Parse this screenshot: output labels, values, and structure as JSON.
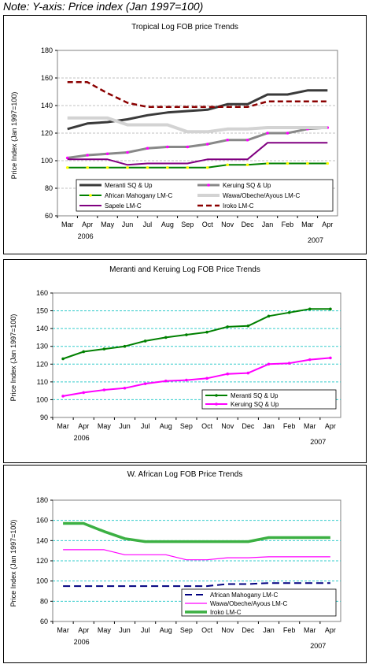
{
  "note": "Note: Y-axis: Price index (Jan 1997=100)",
  "chart_data": [
    {
      "type": "line",
      "title": "Tropical Log FOB price Trends",
      "ylabel": "Price Index (Jan 1997=100)",
      "categories": [
        "Mar",
        "Apr",
        "May",
        "Jun",
        "Jul",
        "Aug",
        "Sep",
        "Oct",
        "Nov",
        "Dec",
        "Jan",
        "Feb",
        "Mar",
        "Apr"
      ],
      "year_labels": [
        "2006",
        "2007"
      ],
      "ylim": [
        60,
        180
      ],
      "yticks": [
        60,
        80,
        100,
        120,
        140,
        160,
        180
      ],
      "grid": true,
      "plot_bg": "#ffffff",
      "series": [
        {
          "name": "Meranti SQ & Up",
          "color": "#3a3a3a",
          "dash": "",
          "width": 3,
          "marker": false,
          "values": [
            123,
            127,
            128,
            130,
            133,
            135,
            136,
            137,
            141,
            141,
            148,
            148,
            151,
            151
          ]
        },
        {
          "name": "Keruing SQ & Up",
          "color": "#888888",
          "dash": "",
          "width": 3,
          "marker": true,
          "marker_color": "#ff00ff",
          "values": [
            102,
            104,
            105,
            106,
            109,
            110,
            110,
            112,
            115,
            115,
            120,
            120,
            123,
            124
          ]
        },
        {
          "name": "African Mahogany LM-C",
          "color": "#008000",
          "dash": "",
          "width": 2,
          "marker": true,
          "marker_color": "#ffff00",
          "values": [
            95,
            95,
            95,
            95,
            95,
            95,
            95,
            95,
            97,
            97,
            98,
            98,
            98,
            98
          ]
        },
        {
          "name": "Wawa/Obeche/Ayous LM-C",
          "color": "#d3d3d3",
          "dash": "",
          "width": 4,
          "marker": false,
          "values": [
            131,
            131,
            131,
            126,
            126,
            126,
            121,
            121,
            123,
            123,
            124,
            124,
            124,
            124
          ]
        },
        {
          "name": "Sapele LM-C",
          "color": "#800080",
          "dash": "",
          "width": 2,
          "marker": false,
          "values": [
            101,
            101,
            101,
            97,
            98,
            98,
            98,
            101,
            101,
            101,
            113,
            113,
            113,
            113
          ]
        },
        {
          "name": "Iroko LM-C",
          "color": "#8b0000",
          "dash": "7,4",
          "width": 2.5,
          "marker": false,
          "values": [
            157,
            157,
            149,
            142,
            139,
            139,
            139,
            139,
            139,
            139,
            143,
            143,
            143,
            143
          ]
        }
      ]
    },
    {
      "type": "line",
      "title": "Meranti and Keruing Log FOB Price Trends",
      "ylabel": "Price Index (Jan 1997=100)",
      "categories": [
        "Mar",
        "Apr",
        "May",
        "Jun",
        "Jul",
        "Aug",
        "Sep",
        "Oct",
        "Nov",
        "Dec",
        "Jan",
        "Feb",
        "Mar",
        "Apr"
      ],
      "year_labels": [
        "2006",
        "2007"
      ],
      "ylim": [
        90,
        160
      ],
      "yticks": [
        90,
        100,
        110,
        120,
        130,
        140,
        150,
        160
      ],
      "grid": true,
      "series": [
        {
          "name": "Meranti SQ & Up",
          "color": "#008000",
          "dash": "",
          "width": 2,
          "marker": true,
          "marker_color": "#008000",
          "values": [
            123,
            127,
            128.5,
            130,
            133,
            135,
            136.5,
            138,
            141,
            141.5,
            147,
            149,
            151,
            151
          ]
        },
        {
          "name": "Keruing SQ & Up",
          "color": "#ff00ff",
          "dash": "",
          "width": 2,
          "marker": true,
          "marker_color": "#ff00ff",
          "values": [
            102,
            104,
            105.5,
            106.5,
            109,
            110.5,
            111,
            112,
            114.5,
            115,
            120,
            120.5,
            122.5,
            123.5
          ]
        }
      ]
    },
    {
      "type": "line",
      "title": "W. African Log FOB Price Trends",
      "ylabel": "Price Index (Jan 1997=100)",
      "categories": [
        "Mar",
        "Apr",
        "May",
        "Jun",
        "Jul",
        "Aug",
        "Sep",
        "Oct",
        "Nov",
        "Dec",
        "Jan",
        "Feb",
        "Mar",
        "Apr"
      ],
      "year_labels": [
        "2006",
        "2007"
      ],
      "ylim": [
        60,
        180
      ],
      "yticks": [
        60,
        80,
        100,
        120,
        140,
        160,
        180
      ],
      "grid": true,
      "series": [
        {
          "name": "African Mahogany LM-C",
          "color": "#000080",
          "dash": "9,5",
          "width": 2,
          "marker": false,
          "values": [
            95,
            95,
            95,
            95,
            95,
            95,
            95,
            95,
            97,
            97,
            98,
            98,
            98,
            98
          ]
        },
        {
          "name": "Wawa/Obeche/Ayous LM-C",
          "color": "#ff00ff",
          "dash": "",
          "width": 1.2,
          "marker": false,
          "values": [
            131,
            131,
            131,
            126,
            126,
            126,
            121,
            121,
            123,
            123,
            124,
            124,
            124,
            124
          ]
        },
        {
          "name": "Iroko LM-C",
          "color": "#3cb043",
          "dash": "",
          "width": 3.5,
          "marker": false,
          "values": [
            157,
            157,
            149,
            142,
            139,
            139,
            139,
            139,
            139,
            139,
            143,
            143,
            143,
            143
          ]
        }
      ]
    }
  ]
}
